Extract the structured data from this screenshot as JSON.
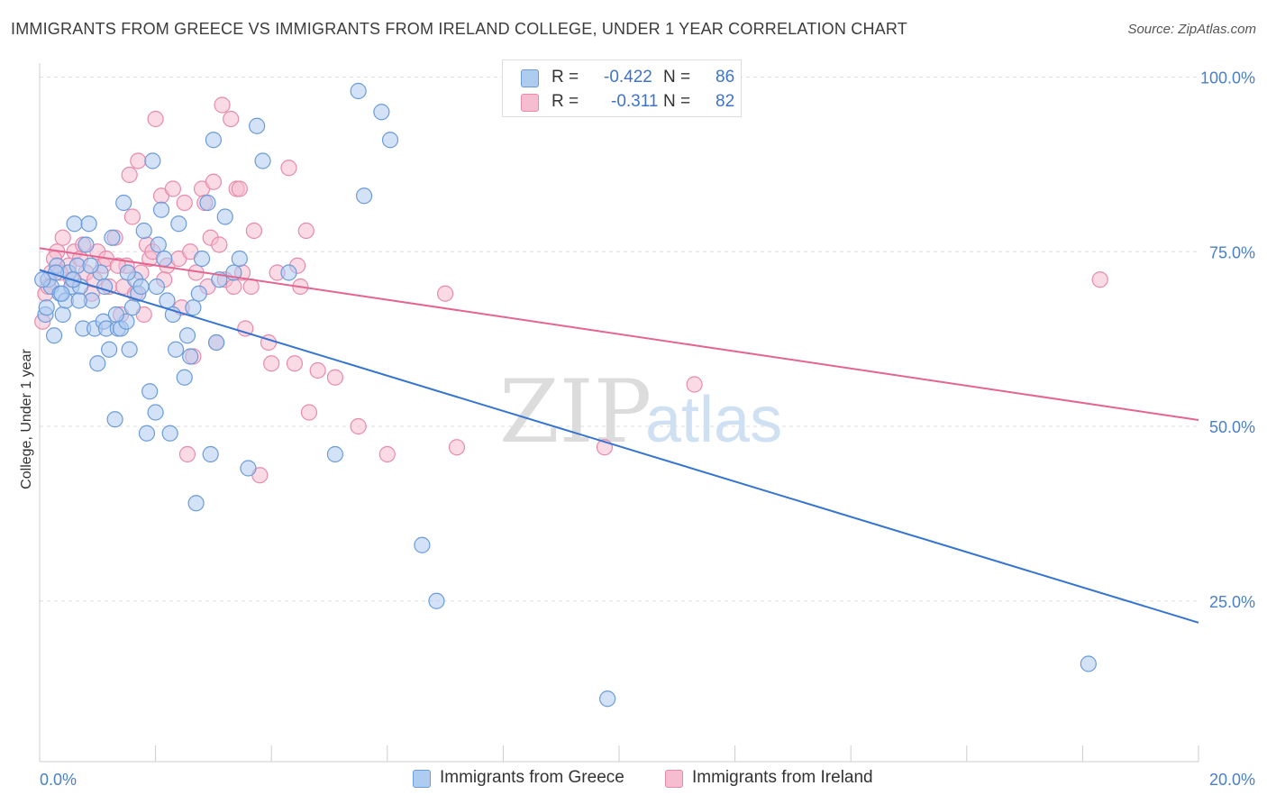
{
  "title": "IMMIGRANTS FROM GREECE VS IMMIGRANTS FROM IRELAND COLLEGE, UNDER 1 YEAR CORRELATION CHART",
  "source": "Source: ZipAtlas.com",
  "watermark": {
    "zip": "ZIP",
    "atlas": "atlas"
  },
  "legend_top": {
    "rows": [
      {
        "r_label": "R =",
        "r_value": "-0.422",
        "n_label": "N =",
        "n_value": "86",
        "color": "#aecbf0"
      },
      {
        "r_label": "R =",
        "r_value": "-0.311",
        "n_label": "N =",
        "n_value": "82",
        "color": "#f6bcd0"
      }
    ]
  },
  "legend_bottom": [
    {
      "label": "Immigrants from Greece",
      "color": "#aecbf0"
    },
    {
      "label": "Immigrants from Ireland",
      "color": "#f6bcd0"
    }
  ],
  "colors": {
    "blue_point_fill": "#aecbf0",
    "blue_point_stroke": "#6a9bd9",
    "blue_line": "#3574d0",
    "pink_point_fill": "#f6bcd0",
    "pink_point_stroke": "#e88aab",
    "pink_line": "#e46590",
    "tick_label": "#4a7fc9",
    "grid": "#dddddd"
  },
  "chart_data": {
    "type": "scatter",
    "title": "IMMIGRANTS FROM GREECE VS IMMIGRANTS FROM IRELAND COLLEGE, UNDER 1 YEAR CORRELATION CHART",
    "xlabel": "",
    "ylabel": "College, Under 1 year",
    "xlim": [
      0,
      20
    ],
    "ylim": [
      2,
      102
    ],
    "x_tick_labels": [
      {
        "value": 0,
        "label": "0.0%"
      },
      {
        "value": 20,
        "label": "20.0%"
      }
    ],
    "x_minor_ticks": [
      2,
      4,
      6,
      8,
      10,
      12,
      14,
      16,
      18,
      20
    ],
    "y_ticks": [
      {
        "value": 100,
        "label": "100.0%"
      },
      {
        "value": 75,
        "label": "75.0%"
      },
      {
        "value": 50,
        "label": "50.0%"
      },
      {
        "value": 25,
        "label": "25.0%"
      }
    ],
    "grid": true,
    "legend_position": "bottom",
    "series": [
      {
        "name": "Immigrants from Greece",
        "color": "#aecbf0",
        "trend": {
          "x": [
            0,
            20
          ],
          "y": [
            72.4,
            21.9
          ]
        },
        "points": [
          [
            0.1,
            66
          ],
          [
            0.15,
            71
          ],
          [
            0.2,
            70
          ],
          [
            0.25,
            63
          ],
          [
            0.3,
            73
          ],
          [
            0.35,
            69
          ],
          [
            0.4,
            66
          ],
          [
            0.45,
            68
          ],
          [
            0.5,
            72
          ],
          [
            0.55,
            70
          ],
          [
            0.6,
            79
          ],
          [
            0.65,
            73
          ],
          [
            0.7,
            70
          ],
          [
            0.75,
            64
          ],
          [
            0.8,
            76
          ],
          [
            0.85,
            79
          ],
          [
            0.9,
            68
          ],
          [
            0.95,
            64
          ],
          [
            1.0,
            59
          ],
          [
            1.05,
            72
          ],
          [
            1.1,
            65
          ],
          [
            1.15,
            64
          ],
          [
            1.2,
            61
          ],
          [
            1.25,
            77
          ],
          [
            1.3,
            51
          ],
          [
            1.35,
            64
          ],
          [
            1.4,
            64
          ],
          [
            1.45,
            82
          ],
          [
            1.5,
            65
          ],
          [
            1.55,
            61
          ],
          [
            1.6,
            67
          ],
          [
            1.65,
            71
          ],
          [
            1.7,
            69
          ],
          [
            1.8,
            78
          ],
          [
            1.85,
            49
          ],
          [
            1.9,
            55
          ],
          [
            1.95,
            88
          ],
          [
            2.0,
            52
          ],
          [
            2.05,
            76
          ],
          [
            2.1,
            81
          ],
          [
            2.15,
            74
          ],
          [
            2.2,
            68
          ],
          [
            2.25,
            49
          ],
          [
            2.35,
            61
          ],
          [
            2.4,
            79
          ],
          [
            2.5,
            57
          ],
          [
            2.55,
            63
          ],
          [
            2.6,
            60
          ],
          [
            2.7,
            39
          ],
          [
            2.75,
            69
          ],
          [
            2.8,
            74
          ],
          [
            2.9,
            82
          ],
          [
            2.95,
            46
          ],
          [
            3.0,
            91
          ],
          [
            3.05,
            62
          ],
          [
            3.1,
            71
          ],
          [
            3.2,
            80
          ],
          [
            3.35,
            72
          ],
          [
            3.45,
            74
          ],
          [
            3.6,
            44
          ],
          [
            3.75,
            93
          ],
          [
            3.85,
            88
          ],
          [
            4.3,
            72
          ],
          [
            5.1,
            46
          ],
          [
            5.5,
            98
          ],
          [
            5.6,
            83
          ],
          [
            5.9,
            95
          ],
          [
            6.05,
            91
          ],
          [
            6.6,
            33
          ],
          [
            6.85,
            25
          ],
          [
            9.8,
            11
          ],
          [
            18.1,
            16
          ],
          [
            0.05,
            71
          ],
          [
            0.12,
            67
          ],
          [
            0.28,
            72
          ],
          [
            0.38,
            69
          ],
          [
            0.58,
            71
          ],
          [
            0.68,
            68
          ],
          [
            0.88,
            73
          ],
          [
            1.12,
            70
          ],
          [
            1.32,
            66
          ],
          [
            1.52,
            72
          ],
          [
            1.75,
            70
          ],
          [
            2.02,
            70
          ],
          [
            2.3,
            66
          ],
          [
            2.65,
            67
          ]
        ]
      },
      {
        "name": "Immigrants from Ireland",
        "color": "#f6bcd0",
        "trend": {
          "x": [
            0,
            20
          ],
          "y": [
            75.5,
            50.9
          ]
        },
        "points": [
          [
            0.05,
            65
          ],
          [
            0.1,
            69
          ],
          [
            0.2,
            72
          ],
          [
            0.3,
            75
          ],
          [
            0.4,
            77
          ],
          [
            0.5,
            73
          ],
          [
            0.6,
            75
          ],
          [
            0.7,
            74
          ],
          [
            0.8,
            72
          ],
          [
            0.9,
            69
          ],
          [
            1.0,
            75
          ],
          [
            1.1,
            73
          ],
          [
            1.2,
            70
          ],
          [
            1.3,
            77
          ],
          [
            1.4,
            66
          ],
          [
            1.5,
            73
          ],
          [
            1.55,
            86
          ],
          [
            1.6,
            80
          ],
          [
            1.7,
            88
          ],
          [
            1.75,
            72
          ],
          [
            1.8,
            66
          ],
          [
            1.85,
            76
          ],
          [
            1.9,
            74
          ],
          [
            2.0,
            94
          ],
          [
            2.1,
            83
          ],
          [
            2.2,
            73
          ],
          [
            2.3,
            84
          ],
          [
            2.4,
            74
          ],
          [
            2.45,
            67
          ],
          [
            2.5,
            82
          ],
          [
            2.55,
            46
          ],
          [
            2.6,
            75
          ],
          [
            2.65,
            60
          ],
          [
            2.7,
            72
          ],
          [
            2.8,
            84
          ],
          [
            2.85,
            82
          ],
          [
            2.9,
            70
          ],
          [
            2.95,
            77
          ],
          [
            3.0,
            85
          ],
          [
            3.05,
            62
          ],
          [
            3.1,
            76
          ],
          [
            3.15,
            96
          ],
          [
            3.2,
            71
          ],
          [
            3.3,
            94
          ],
          [
            3.35,
            70
          ],
          [
            3.4,
            84
          ],
          [
            3.45,
            84
          ],
          [
            3.5,
            72
          ],
          [
            3.55,
            64
          ],
          [
            3.65,
            70
          ],
          [
            3.7,
            78
          ],
          [
            3.8,
            43
          ],
          [
            3.95,
            62
          ],
          [
            4.0,
            59
          ],
          [
            4.1,
            72
          ],
          [
            4.3,
            87
          ],
          [
            4.4,
            59
          ],
          [
            4.45,
            73
          ],
          [
            4.5,
            70
          ],
          [
            4.6,
            78
          ],
          [
            4.65,
            52
          ],
          [
            4.8,
            58
          ],
          [
            5.1,
            57
          ],
          [
            5.5,
            50
          ],
          [
            6.0,
            46
          ],
          [
            7.0,
            69
          ],
          [
            7.2,
            47
          ],
          [
            9.75,
            47
          ],
          [
            11.3,
            56
          ],
          [
            18.3,
            71
          ],
          [
            0.15,
            70
          ],
          [
            0.25,
            74
          ],
          [
            0.35,
            72
          ],
          [
            0.55,
            71
          ],
          [
            0.75,
            76
          ],
          [
            0.95,
            71
          ],
          [
            1.15,
            74
          ],
          [
            1.35,
            73
          ],
          [
            1.45,
            70
          ],
          [
            1.65,
            69
          ],
          [
            1.95,
            75
          ],
          [
            2.15,
            71
          ]
        ]
      }
    ]
  }
}
